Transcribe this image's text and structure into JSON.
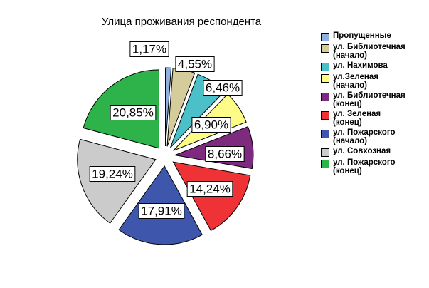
{
  "chart_data": {
    "type": "pie",
    "title": "Улица проживания респондента",
    "slices": [
      {
        "label": "Пропущенные",
        "value": 1.17,
        "display": "1,17%",
        "color": "#8fb1e0"
      },
      {
        "label": "ул. Библиотечная\n(начало)",
        "value": 4.55,
        "display": "4,55%",
        "color": "#d4cc9b"
      },
      {
        "label": "ул. Нахимова",
        "value": 6.46,
        "display": "6,46%",
        "color": "#4cc0c8"
      },
      {
        "label": "ул.Зеленая\n(начало)",
        "value": 6.9,
        "display": "6,90%",
        "color": "#fcfc86"
      },
      {
        "label": "ул. Библиотечная\n(конец)",
        "value": 8.66,
        "display": "8,66%",
        "color": "#7e2a7e"
      },
      {
        "label": "ул. Зеленая\n(конец)",
        "value": 14.24,
        "display": "14,24%",
        "color": "#ee3236"
      },
      {
        "label": "ул. Пожарского\n(начало)",
        "value": 17.91,
        "display": "17,91%",
        "color": "#3e57ac"
      },
      {
        "label": "ул. Совхозная",
        "value": 19.24,
        "display": "19,24%",
        "color": "#cbcbcb"
      },
      {
        "label": "ул. Пожарского\n(конец)",
        "value": 20.85,
        "display": "20,85%",
        "color": "#2eb34a"
      }
    ],
    "legend_position": "right"
  }
}
